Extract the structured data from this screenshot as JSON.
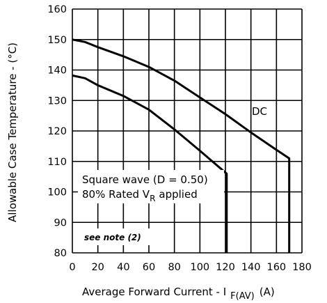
{
  "chart_data": {
    "type": "line",
    "title": "",
    "xlabel": "Average Forward Current - I",
    "xlabel_sub": "F(AV)",
    "xlabel_unit": "(A)",
    "ylabel": "Allowable Case Temperature - (°C)",
    "xlim": [
      0,
      180
    ],
    "ylim": [
      80,
      160
    ],
    "x_ticks": [
      "0",
      "20",
      "40",
      "60",
      "80",
      "100",
      "120",
      "140",
      "160",
      "180"
    ],
    "y_ticks": [
      "80",
      "90",
      "100",
      "110",
      "120",
      "130",
      "140",
      "150",
      "160"
    ],
    "grid": true,
    "series": [
      {
        "name": "DC",
        "points": [
          [
            0,
            150
          ],
          [
            10,
            149.2
          ],
          [
            20,
            147.5
          ],
          [
            40,
            144.5
          ],
          [
            60,
            141
          ],
          [
            80,
            136.5
          ],
          [
            100,
            131
          ],
          [
            120,
            125.5
          ],
          [
            140,
            119.5
          ],
          [
            160,
            113.8
          ],
          [
            170,
            111
          ],
          [
            170,
            80
          ]
        ]
      },
      {
        "name": "Square wave (D = 0.50)",
        "points": [
          [
            0,
            138.2
          ],
          [
            10,
            137.3
          ],
          [
            20,
            135
          ],
          [
            40,
            131.5
          ],
          [
            60,
            127
          ],
          [
            80,
            120.5
          ],
          [
            100,
            113.5
          ],
          [
            121,
            106
          ],
          [
            121,
            80
          ]
        ]
      }
    ],
    "annotations": {
      "dc_label": "DC",
      "square_line1": "Square wave (D = 0.50)",
      "square_line2_a": "80% Rated V",
      "square_line2_sub": "R",
      "square_line2_b": "applied",
      "note": "see note (2)"
    }
  }
}
